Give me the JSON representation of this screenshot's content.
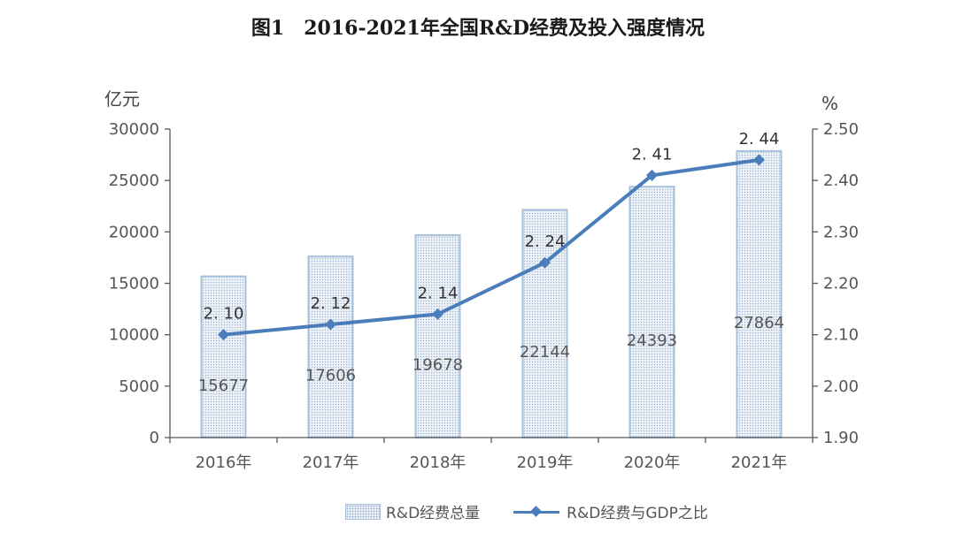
{
  "title": {
    "figure_no": "图1",
    "text": "2016-2021年全国R&D经费及投入强度情况"
  },
  "chart_data": {
    "type": "bar",
    "categories": [
      "2016年",
      "2017年",
      "2018年",
      "2019年",
      "2020年",
      "2021年"
    ],
    "series": [
      {
        "name": "R&D经费总量",
        "type": "bar",
        "axis": "left",
        "values": [
          15677,
          17606,
          19678,
          22144,
          24393,
          27864
        ]
      },
      {
        "name": "R&D经费与GDP之比",
        "type": "line",
        "axis": "right",
        "values": [
          2.1,
          2.12,
          2.14,
          2.24,
          2.41,
          2.44
        ],
        "labels": [
          "2. 10",
          "2. 12",
          "2. 14",
          "2. 24",
          "2. 41",
          "2. 44"
        ]
      }
    ],
    "left_axis": {
      "unit": "亿元",
      "ylim": [
        0,
        30000
      ],
      "ticks": [
        "0",
        "5000",
        "10000",
        "15000",
        "20000",
        "25000",
        "30000"
      ]
    },
    "right_axis": {
      "unit": "%",
      "ylim": [
        1.9,
        2.5
      ],
      "ticks": [
        "1.90",
        "2.00",
        "2.10",
        "2.20",
        "2.30",
        "2.40",
        "2.50"
      ]
    },
    "legend_position": "bottom",
    "grid": false,
    "colors": {
      "bar_border": "#a7c0dc",
      "bar_dots": "#9fb4cc",
      "line": "#4a7ebb",
      "axis": "#595959"
    }
  }
}
